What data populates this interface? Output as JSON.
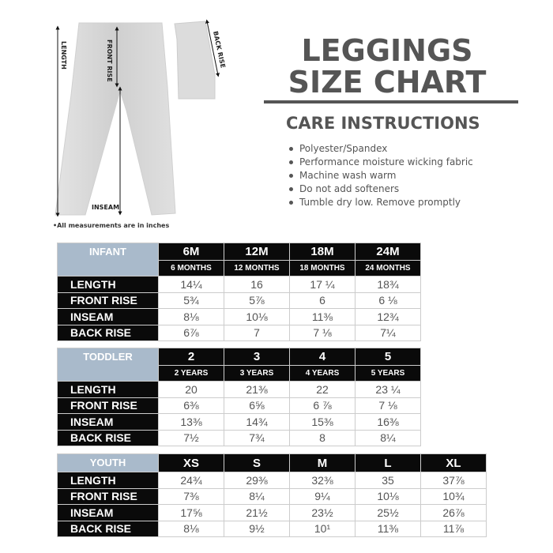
{
  "header": {
    "title_line1": "LEGGINGS",
    "title_line2": "SIZE CHART"
  },
  "care": {
    "title": "CARE INSTRUCTIONS",
    "items": [
      "Polyester/Spandex",
      "Performance moisture wicking fabric",
      "Machine wash warm",
      "Do not add softeners",
      "Tumble dry low. Remove promptly"
    ]
  },
  "diagram": {
    "labels": {
      "length": "LENGTH",
      "front_rise": "FRONT RISE",
      "back_rise": "BACK RISE",
      "inseam": "INSEAM"
    },
    "note": "•All measurements are in inches"
  },
  "colors": {
    "group_header": "#a9bacb",
    "header_bg": "#0a0a0a",
    "text_gray": "#555555"
  },
  "tables": [
    {
      "group": "INFANT",
      "sizes": [
        "6M",
        "12M",
        "18M",
        "24M"
      ],
      "subs": [
        "6 MONTHS",
        "12 MONTHS",
        "18 MONTHS",
        "24 MONTHS"
      ],
      "rows": [
        {
          "label": "LENGTH",
          "values": [
            "14¼",
            "16",
            "17 ¼",
            "18¾"
          ]
        },
        {
          "label": "FRONT RISE",
          "values": [
            "5¾",
            "5⅞",
            "6",
            "6 ⅛"
          ]
        },
        {
          "label": "INSEAM",
          "values": [
            "8⅛",
            "10⅛",
            "11⅜",
            "12¾"
          ]
        },
        {
          "label": "BACK RISE",
          "values": [
            "6⅞",
            "7",
            "7 ⅛",
            "7¼"
          ]
        }
      ]
    },
    {
      "group": "TODDLER",
      "sizes": [
        "2",
        "3",
        "4",
        "5"
      ],
      "subs": [
        "2 YEARS",
        "3 YEARS",
        "4 YEARS",
        "5 YEARS"
      ],
      "rows": [
        {
          "label": "LENGTH",
          "values": [
            "20",
            "21⅜",
            "22",
            "23 ¼"
          ]
        },
        {
          "label": "FRONT RISE",
          "values": [
            "6⅜",
            "6⅝",
            "6 ⅞",
            "7 ⅛"
          ]
        },
        {
          "label": "INSEAM",
          "values": [
            "13⅜",
            "14¾",
            "15⅜",
            "16⅜"
          ]
        },
        {
          "label": "BACK RISE",
          "values": [
            "7½",
            "7¾",
            "8",
            "8¼"
          ]
        }
      ]
    },
    {
      "group": "YOUTH",
      "sizes": [
        "XS",
        "S",
        "M",
        "L",
        "XL"
      ],
      "rows": [
        {
          "label": "LENGTH",
          "values": [
            "24¾",
            "29⅜",
            "32⅜",
            "35",
            "37⅞"
          ]
        },
        {
          "label": "FRONT RISE",
          "values": [
            "7⅜",
            "8¼",
            "9¼",
            "10⅛",
            "10¾"
          ]
        },
        {
          "label": "INSEAM",
          "values": [
            "17⅝",
            "21½",
            "23½",
            "25½",
            "26⅞"
          ]
        },
        {
          "label": "BACK RISE",
          "values": [
            "8⅛",
            "9½",
            "10¹",
            "11⅜",
            "11⅞"
          ]
        }
      ]
    }
  ]
}
